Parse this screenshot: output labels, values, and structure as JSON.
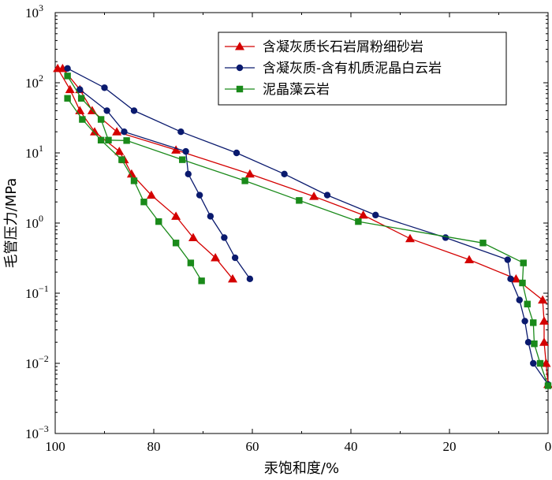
{
  "chart_data": {
    "type": "line",
    "xlabel": "汞饱和度/%",
    "ylabel": "毛管压力/MPa",
    "x_axis": {
      "range": [
        100,
        0
      ],
      "reversed": true,
      "ticks": [
        100,
        80,
        60,
        40,
        20,
        0
      ],
      "tick_labels": [
        "100",
        "80",
        "60",
        "40",
        "20",
        "0"
      ]
    },
    "y_axis": {
      "scale": "log",
      "range": [
        0.001,
        1000
      ],
      "ticks": [
        {
          "value": 0.001,
          "base": "10",
          "exp": "−3"
        },
        {
          "value": 0.01,
          "base": "10",
          "exp": "−2"
        },
        {
          "value": 0.1,
          "base": "10",
          "exp": "−1"
        },
        {
          "value": 1,
          "base": "10",
          "exp": "0"
        },
        {
          "value": 10,
          "base": "10",
          "exp": "1"
        },
        {
          "value": 100,
          "base": "10",
          "exp": "2"
        },
        {
          "value": 1000,
          "base": "10",
          "exp": "3"
        }
      ]
    },
    "grid": false,
    "legend_position": "top-right",
    "series": [
      {
        "name": "含凝灰质长石岩屑粉细砂岩",
        "color": "#d40000",
        "marker": "triangle",
        "curves": [
          [
            [
              0.0,
              0.005
            ],
            [
              0.4,
              0.01
            ],
            [
              0.8,
              0.02
            ],
            [
              0.8,
              0.04
            ],
            [
              1.1,
              0.08
            ],
            [
              6.5,
              0.16
            ],
            [
              16,
              0.3
            ],
            [
              28,
              0.6
            ],
            [
              37.5,
              1.3
            ],
            [
              47.5,
              2.4
            ],
            [
              60.5,
              5.0
            ],
            [
              75.5,
              11
            ],
            [
              87.5,
              20
            ],
            [
              92.5,
              40
            ],
            [
              95,
              80
            ],
            [
              98.5,
              160
            ]
          ],
          [
            [
              99.5,
              160
            ],
            [
              97,
              80
            ],
            [
              95,
              40
            ],
            [
              92,
              20
            ],
            [
              87,
              10.5
            ],
            [
              86,
              8.0
            ],
            [
              84.5,
              5.0
            ],
            [
              80.5,
              2.5
            ],
            [
              75.5,
              1.25
            ],
            [
              72,
              0.62
            ],
            [
              67.5,
              0.32
            ],
            [
              64,
              0.16
            ]
          ]
        ]
      },
      {
        "name": "含凝灰质-含有机质泥晶白云岩",
        "color": "#0a1a6e",
        "marker": "circle",
        "curves": [
          [
            [
              0.0,
              0.005
            ],
            [
              3.0,
              0.01
            ],
            [
              4.0,
              0.02
            ],
            [
              4.7,
              0.04
            ],
            [
              5.8,
              0.08
            ],
            [
              7.6,
              0.16
            ],
            [
              8.2,
              0.3
            ],
            [
              20.8,
              0.62
            ],
            [
              35,
              1.3
            ],
            [
              44.8,
              2.5
            ],
            [
              53.5,
              5.0
            ],
            [
              63.2,
              10
            ],
            [
              74.5,
              20
            ],
            [
              84,
              40
            ],
            [
              90,
              85
            ],
            [
              97.5,
              160
            ]
          ],
          [
            [
              95,
              80
            ],
            [
              89.5,
              40
            ],
            [
              86,
              20
            ],
            [
              73.5,
              10.5
            ],
            [
              73,
              5.0
            ],
            [
              70.7,
              2.5
            ],
            [
              68.5,
              1.25
            ],
            [
              65.7,
              0.62
            ],
            [
              63.5,
              0.32
            ],
            [
              60.5,
              0.16
            ]
          ]
        ]
      },
      {
        "name": "泥晶藻云岩",
        "color": "#1a8a1a",
        "marker": "square",
        "curves": [
          [
            [
              0.0,
              0.0048
            ],
            [
              1.6,
              0.01
            ],
            [
              2.8,
              0.019
            ],
            [
              3.0,
              0.038
            ],
            [
              4.2,
              0.07
            ],
            [
              5.2,
              0.14
            ],
            [
              5.0,
              0.27
            ],
            [
              13.2,
              0.52
            ],
            [
              38.5,
              1.05
            ],
            [
              50.5,
              2.1
            ],
            [
              61.5,
              4.0
            ],
            [
              74.2,
              8.0
            ],
            [
              85.5,
              15
            ],
            [
              89.2,
              15.2
            ],
            [
              90.7,
              30
            ],
            [
              94.7,
              60
            ],
            [
              97.5,
              125
            ]
          ],
          [
            [
              97.5,
              60
            ],
            [
              94.5,
              30
            ],
            [
              90.7,
              15.2
            ],
            [
              86.5,
              8.0
            ],
            [
              84,
              4.0
            ],
            [
              82,
              2.0
            ],
            [
              79,
              1.05
            ],
            [
              75.5,
              0.52
            ],
            [
              72.5,
              0.27
            ],
            [
              70.3,
              0.15
            ]
          ]
        ]
      }
    ]
  }
}
